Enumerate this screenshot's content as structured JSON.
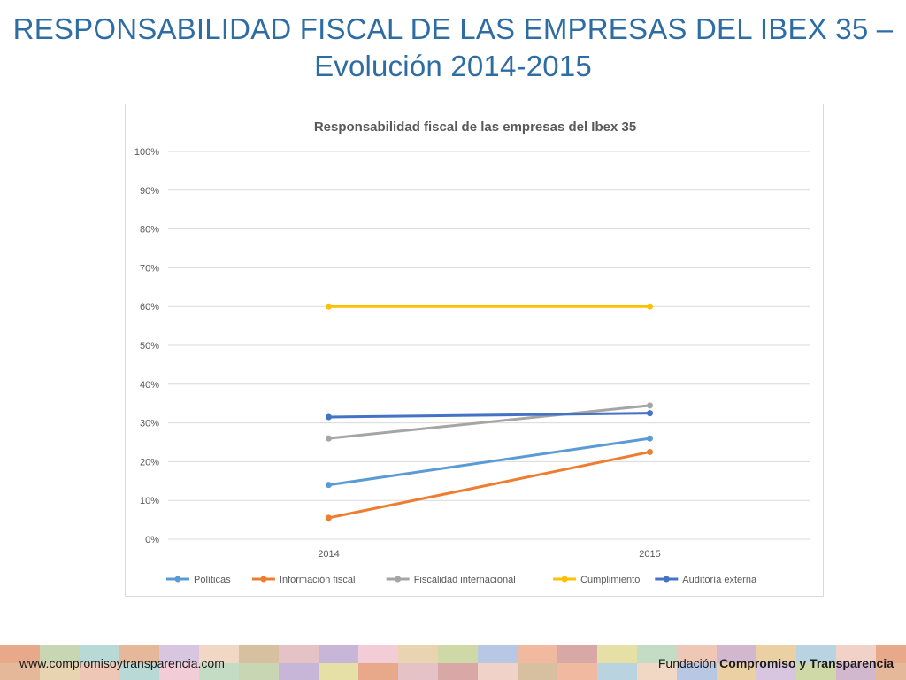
{
  "slide": {
    "title_line1": "RESPONSABILIDAD FISCAL DE LAS EMPRESAS DEL IBEX 35 –",
    "title_line2": "Evolución 2014-2015"
  },
  "chart_data": {
    "type": "line",
    "title": "Responsabilidad fiscal de las empresas del Ibex 35",
    "categories": [
      "2014",
      "2015"
    ],
    "ylim": [
      0,
      100
    ],
    "yticks": [
      "0%",
      "10%",
      "20%",
      "30%",
      "40%",
      "50%",
      "60%",
      "70%",
      "80%",
      "90%",
      "100%"
    ],
    "grid": true,
    "legend_position": "bottom",
    "series": [
      {
        "name": "Políticas",
        "color": "#5b9bd5",
        "values": [
          14,
          26
        ]
      },
      {
        "name": "Información fiscal",
        "color": "#ed7d31",
        "values": [
          5.5,
          22.5
        ]
      },
      {
        "name": "Fiscalidad internacional",
        "color": "#a5a5a5",
        "values": [
          26,
          34.5
        ]
      },
      {
        "name": "Cumplimiento",
        "color": "#ffc000",
        "values": [
          60,
          60
        ]
      },
      {
        "name": "Auditoría externa",
        "color": "#4472c4",
        "values": [
          31.5,
          32.5
        ]
      }
    ]
  },
  "footer": {
    "website": "www.compromisoytransparencia.com",
    "org_prefix": "Fundación",
    "org_bold": "Compromiso y Transparencia"
  }
}
